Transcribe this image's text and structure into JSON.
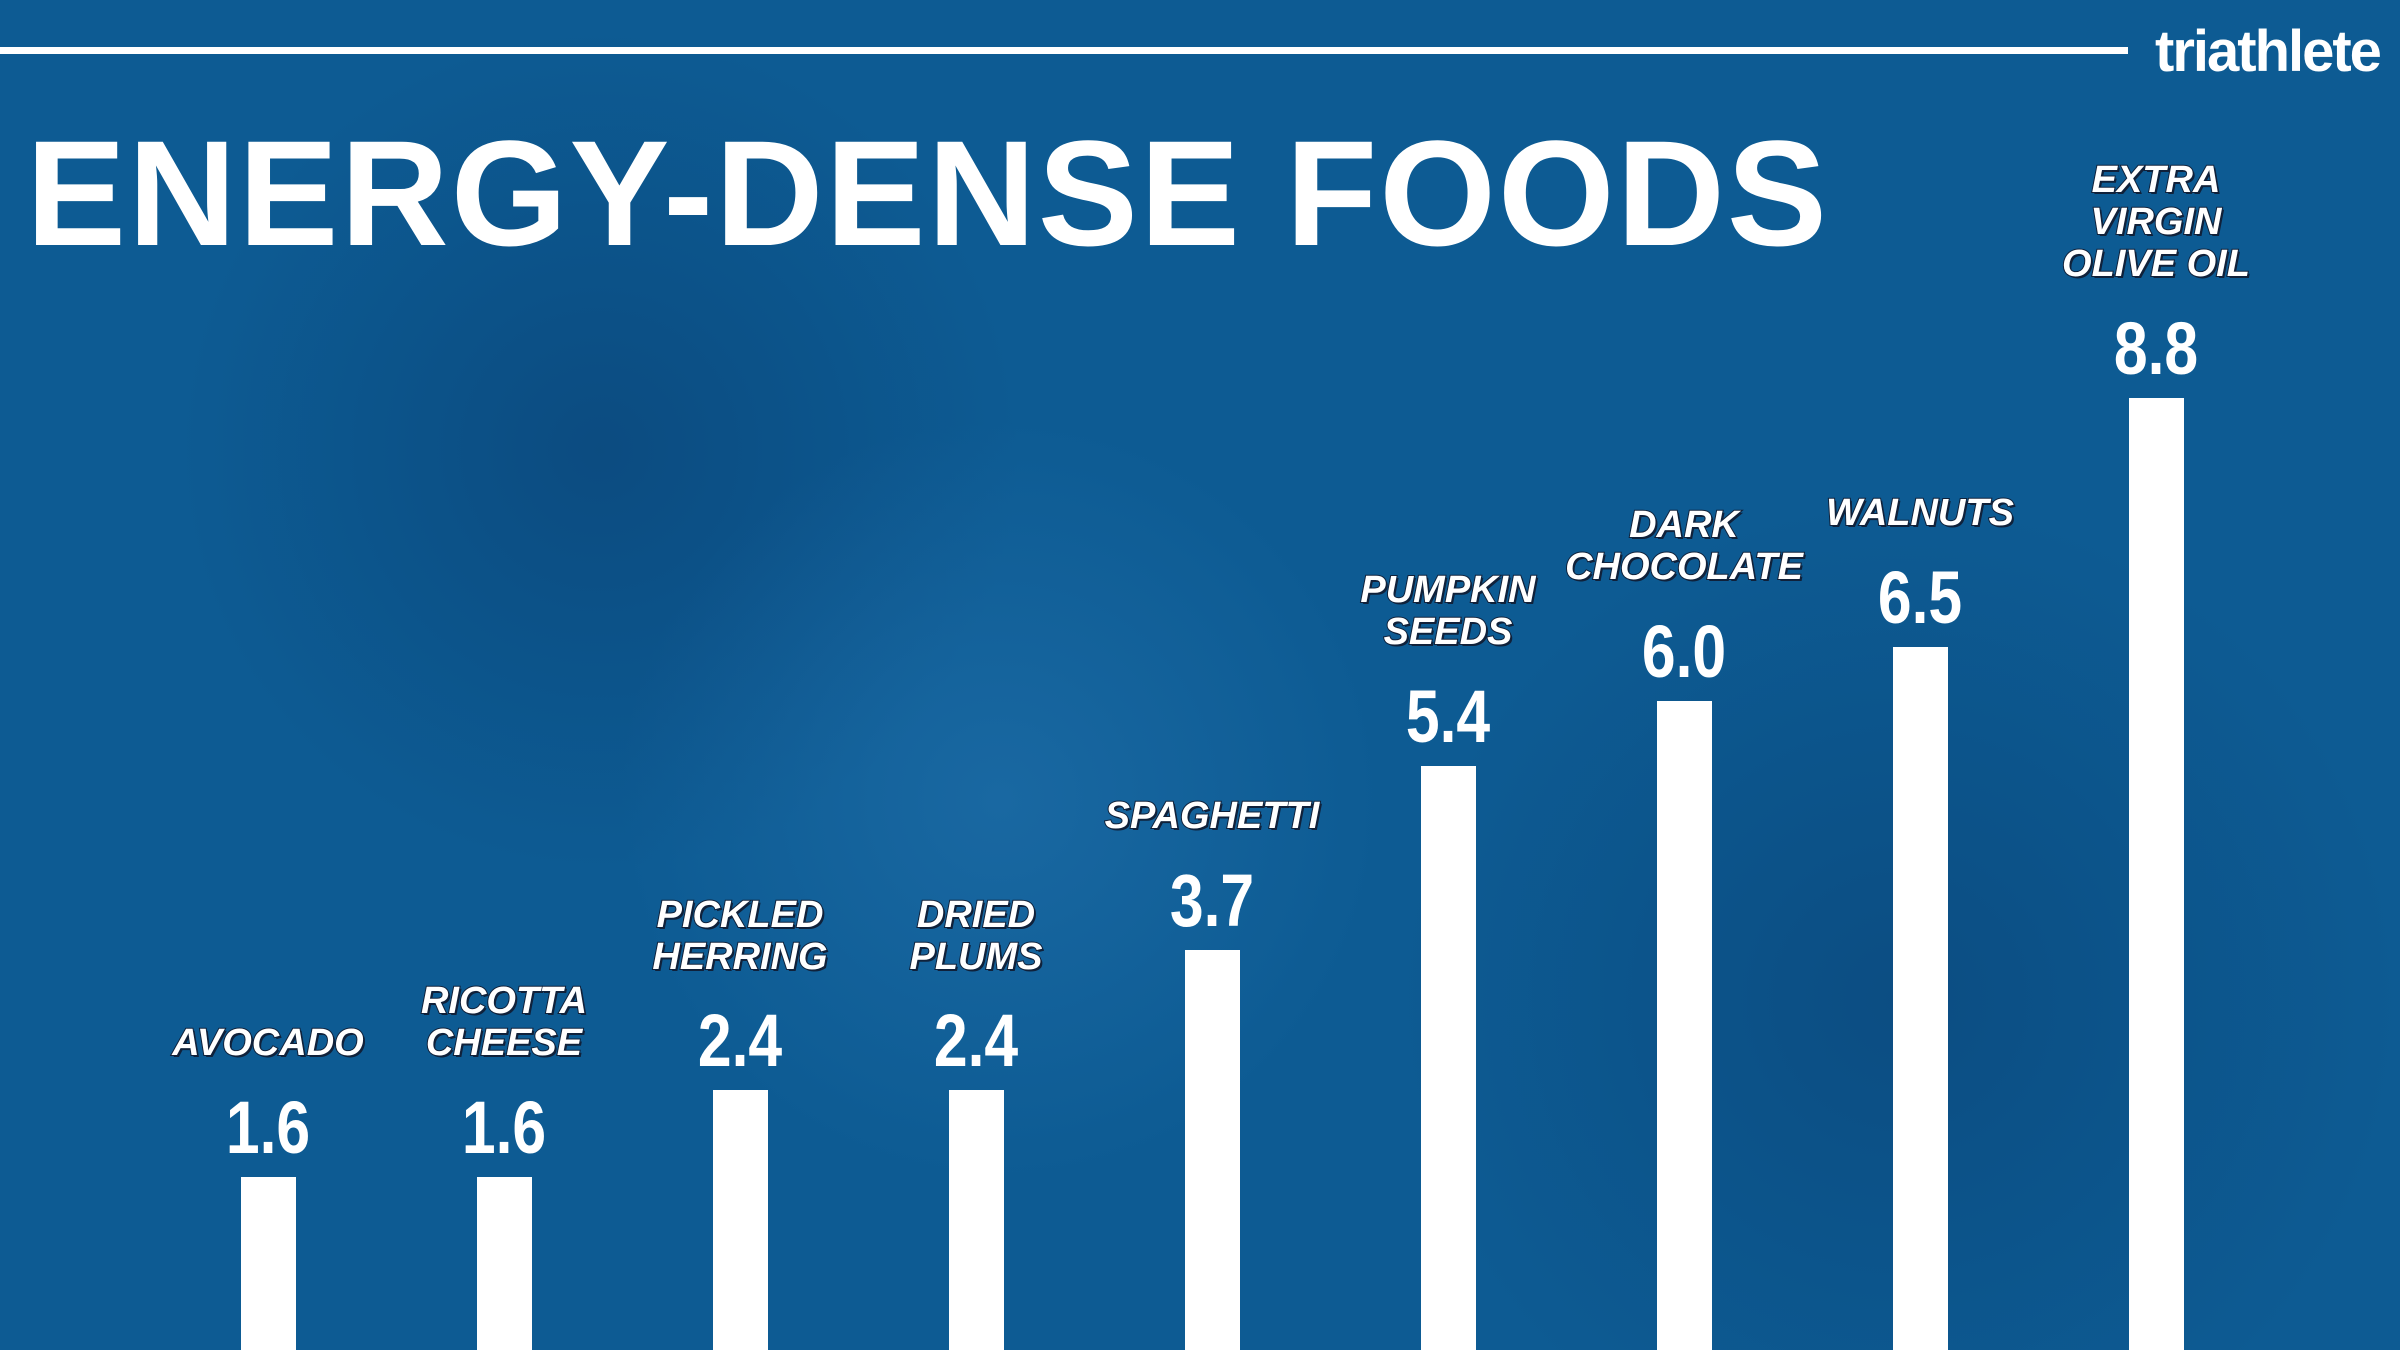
{
  "brand": "triathlete",
  "chart_data": {
    "type": "bar",
    "title": "ENERGY-DENSE FOODS",
    "categories": [
      "AVOCADO",
      "RICOTTA CHEESE",
      "PICKLED HERRING",
      "DRIED PLUMS",
      "SPAGHETTI",
      "PUMPKIN SEEDS",
      "DARK CHOCOLATE",
      "WALNUTS",
      "EXTRA VIRGIN OLIVE OIL"
    ],
    "values": [
      1.6,
      1.6,
      2.4,
      2.4,
      3.7,
      5.4,
      6.0,
      6.5,
      8.8
    ],
    "value_labels": [
      "1.6",
      "1.6",
      "2.4",
      "2.4",
      "3.7",
      "5.4",
      "6.0",
      "6.5",
      "8.8"
    ],
    "color": "#ffffff"
  }
}
